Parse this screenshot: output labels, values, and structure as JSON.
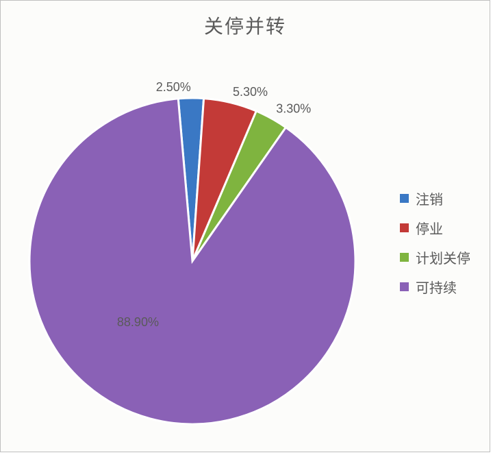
{
  "chart": {
    "type": "pie",
    "title": "关停并转",
    "title_fontsize": 28,
    "title_color": "#5a5a5a",
    "background_color": "#fcfcfa",
    "border_color": "#bfbfbf",
    "label_fontsize": 18,
    "label_color": "#5a5a5a",
    "legend_fontsize": 20,
    "legend_position": "right",
    "slice_gap_color": "#ffffff",
    "slice_gap_width": 3,
    "slices": [
      {
        "name": "注销",
        "value": 2.5,
        "label": "2.50%",
        "color": "#3a78c4"
      },
      {
        "name": "停业",
        "value": 5.3,
        "label": "5.30%",
        "color": "#c33a37"
      },
      {
        "name": "计划关停",
        "value": 3.3,
        "label": "3.30%",
        "color": "#7fb43f"
      },
      {
        "name": "可持续",
        "value": 88.9,
        "label": "88.90%",
        "color": "#8a61b6"
      }
    ],
    "dominant_label_inside": true,
    "start_offset_deg": -5
  }
}
